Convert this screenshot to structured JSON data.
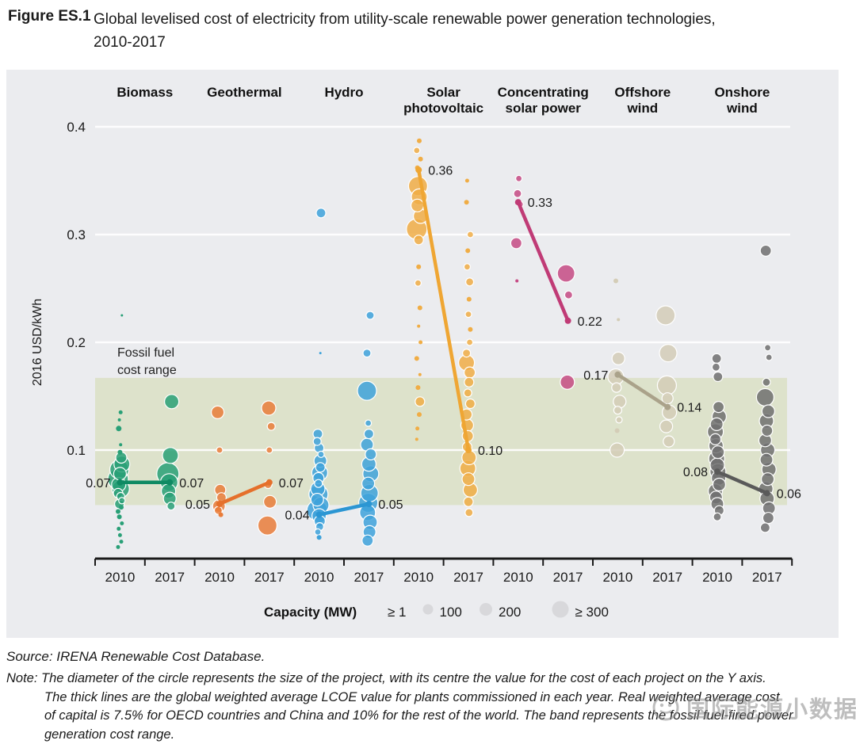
{
  "figure": {
    "label": "Figure ES.1",
    "title_line1": "Global levelised cost of electricity from utility-scale renewable power generation technologies,",
    "title_line2": "2010-2017"
  },
  "source": "Source: IRENA Renewable Cost Database.",
  "note": {
    "lines": [
      "Note: The diameter of the circle represents the size of the project, with its centre the value for the cost of each project on the Y axis.",
      "The thick lines are the global weighted average LCOE value for plants commissioned in each year. Real weighted average cost",
      "of capital is 7.5% for OECD countries and China and 10% for the rest of the world. The band represents the fossil fuel-fired power",
      "generation cost range."
    ]
  },
  "watermark": "国际能源小数据",
  "chart_data": {
    "type": "scatter",
    "title": "Global levelised cost of electricity from utility-scale renewable power generation technologies, 2010-2017",
    "ylabel": "2016 USD/kWh",
    "ylim": [
      0,
      0.43
    ],
    "yticks": [
      0.1,
      0.2,
      0.3,
      0.4
    ],
    "years": [
      "2010",
      "2017"
    ],
    "grid": "horizontal-white",
    "fossil_band": {
      "label_lines": [
        "Fossil fuel",
        "cost range"
      ],
      "range": [
        0.049,
        0.167
      ],
      "color": "#dde2cb"
    },
    "legend": {
      "title": "Capacity (MW)",
      "items": [
        {
          "label": "≥ 1",
          "r": 0
        },
        {
          "label": "100",
          "r": 6.5
        },
        {
          "label": "200",
          "r": 8
        },
        {
          "label": "≥ 300",
          "r": 10.5
        }
      ],
      "circle_color": "#d8d8db",
      "position": "bottom"
    },
    "groups": [
      {
        "name": "Biomass",
        "name_lines": [
          "Biomass"
        ],
        "color": "#29a077",
        "line_color": "#0f8a63",
        "avg": [
          0.07,
          0.07
        ],
        "labels": [
          {
            "text": "0.07",
            "side": "left"
          },
          {
            "text": "0.07",
            "side": "right"
          }
        ],
        "bubbles_2010": [
          [
            0.225,
            1.5
          ],
          [
            0.135,
            2.5
          ],
          [
            0.128,
            2
          ],
          [
            0.12,
            3.5
          ],
          [
            0.105,
            2
          ],
          [
            0.098,
            3
          ],
          [
            0.093,
            7
          ],
          [
            0.087,
            10
          ],
          [
            0.082,
            12
          ],
          [
            0.078,
            8
          ],
          [
            0.073,
            13
          ],
          [
            0.068,
            9
          ],
          [
            0.064,
            11
          ],
          [
            0.06,
            6
          ],
          [
            0.057,
            5
          ],
          [
            0.053,
            4
          ],
          [
            0.05,
            6
          ],
          [
            0.047,
            3
          ],
          [
            0.043,
            3
          ],
          [
            0.038,
            3
          ],
          [
            0.032,
            2.5
          ],
          [
            0.027,
            2.5
          ],
          [
            0.021,
            2.5
          ],
          [
            0.015,
            2.5
          ],
          [
            0.01,
            2.5
          ]
        ],
        "bubbles_2017": [
          [
            0.145,
            9
          ],
          [
            0.095,
            10
          ],
          [
            0.078,
            14
          ],
          [
            0.07,
            11
          ],
          [
            0.062,
            9
          ],
          [
            0.055,
            8
          ],
          [
            0.048,
            5
          ]
        ]
      },
      {
        "name": "Geothermal",
        "name_lines": [
          "Geothermal"
        ],
        "color": "#e97c39",
        "line_color": "#e5702b",
        "avg": [
          0.05,
          0.07
        ],
        "labels": [
          {
            "text": "0.05",
            "side": "left"
          },
          {
            "text": "0.07",
            "side": "right"
          }
        ],
        "bubbles_2010": [
          [
            0.135,
            8
          ],
          [
            0.1,
            4
          ],
          [
            0.063,
            7
          ],
          [
            0.056,
            6
          ],
          [
            0.048,
            8
          ],
          [
            0.044,
            5
          ],
          [
            0.04,
            3
          ]
        ],
        "bubbles_2017": [
          [
            0.139,
            9
          ],
          [
            0.122,
            5
          ],
          [
            0.1,
            4
          ],
          [
            0.068,
            5
          ],
          [
            0.052,
            8
          ],
          [
            0.03,
            12
          ]
        ]
      },
      {
        "name": "Hydro",
        "name_lines": [
          "Hydro"
        ],
        "color": "#3ea2da",
        "line_color": "#2b96d3",
        "avg": [
          0.04,
          0.05
        ],
        "labels": [
          {
            "text": "0.04",
            "side": "left"
          },
          {
            "text": "0.05",
            "side": "right"
          }
        ],
        "bubbles_2010": [
          [
            0.32,
            6
          ],
          [
            0.19,
            1.5
          ],
          [
            0.115,
            6
          ],
          [
            0.108,
            5
          ],
          [
            0.102,
            6
          ],
          [
            0.096,
            4
          ],
          [
            0.09,
            8
          ],
          [
            0.084,
            6
          ],
          [
            0.079,
            10
          ],
          [
            0.074,
            7
          ],
          [
            0.069,
            5
          ],
          [
            0.064,
            9
          ],
          [
            0.059,
            12
          ],
          [
            0.054,
            8
          ],
          [
            0.049,
            10
          ],
          [
            0.044,
            13
          ],
          [
            0.039,
            9
          ],
          [
            0.034,
            7
          ],
          [
            0.029,
            5
          ],
          [
            0.024,
            4
          ],
          [
            0.019,
            3
          ]
        ],
        "bubbles_2017": [
          [
            0.225,
            5
          ],
          [
            0.19,
            5
          ],
          [
            0.155,
            12
          ],
          [
            0.125,
            4
          ],
          [
            0.115,
            6
          ],
          [
            0.105,
            8
          ],
          [
            0.096,
            7
          ],
          [
            0.087,
            9
          ],
          [
            0.078,
            10
          ],
          [
            0.069,
            8
          ],
          [
            0.06,
            11
          ],
          [
            0.051,
            12
          ],
          [
            0.042,
            10
          ],
          [
            0.033,
            9
          ],
          [
            0.024,
            8
          ],
          [
            0.016,
            7
          ]
        ]
      },
      {
        "name": "Solar photovoltaic",
        "name_lines": [
          "Solar",
          "photovoltaic"
        ],
        "color": "#f0ad45",
        "line_color": "#efa633",
        "avg": [
          0.36,
          0.1
        ],
        "labels": [
          {
            "text": "0.36",
            "side": "right"
          },
          {
            "text": "0.10",
            "side": "right"
          }
        ],
        "bubbles_2010": [
          [
            0.387,
            3
          ],
          [
            0.378,
            4
          ],
          [
            0.37,
            3
          ],
          [
            0.362,
            3
          ],
          [
            0.345,
            12
          ],
          [
            0.335,
            10
          ],
          [
            0.327,
            8
          ],
          [
            0.317,
            9
          ],
          [
            0.305,
            13
          ],
          [
            0.295,
            6
          ],
          [
            0.27,
            3
          ],
          [
            0.255,
            4
          ],
          [
            0.232,
            3
          ],
          [
            0.215,
            2
          ],
          [
            0.2,
            2.5
          ],
          [
            0.185,
            3
          ],
          [
            0.17,
            2
          ],
          [
            0.158,
            3
          ],
          [
            0.145,
            6
          ],
          [
            0.133,
            3
          ],
          [
            0.12,
            2.5
          ],
          [
            0.11,
            2
          ]
        ],
        "bubbles_2017": [
          [
            0.35,
            2.5
          ],
          [
            0.33,
            3
          ],
          [
            0.3,
            4
          ],
          [
            0.285,
            3
          ],
          [
            0.27,
            4
          ],
          [
            0.256,
            5
          ],
          [
            0.24,
            3
          ],
          [
            0.226,
            4
          ],
          [
            0.212,
            3
          ],
          [
            0.2,
            4
          ],
          [
            0.19,
            5
          ],
          [
            0.181,
            10
          ],
          [
            0.172,
            7
          ],
          [
            0.163,
            6
          ],
          [
            0.153,
            5
          ],
          [
            0.143,
            6
          ],
          [
            0.133,
            7
          ],
          [
            0.123,
            8
          ],
          [
            0.113,
            7
          ],
          [
            0.103,
            6
          ],
          [
            0.093,
            9
          ],
          [
            0.083,
            10
          ],
          [
            0.073,
            8
          ],
          [
            0.063,
            9
          ],
          [
            0.052,
            6
          ],
          [
            0.042,
            5
          ]
        ]
      },
      {
        "name": "Concentrating solar power",
        "name_lines": [
          "Concentrating",
          "solar power"
        ],
        "color": "#c64b84",
        "line_color": "#c03b76",
        "avg": [
          0.33,
          0.22
        ],
        "labels": [
          {
            "text": "0.33",
            "side": "right"
          },
          {
            "text": "0.22",
            "side": "right"
          }
        ],
        "bubbles_2010": [
          [
            0.352,
            4
          ],
          [
            0.338,
            5
          ],
          [
            0.328,
            4
          ],
          [
            0.292,
            7
          ],
          [
            0.257,
            2
          ]
        ],
        "bubbles_2017": [
          [
            0.264,
            11
          ],
          [
            0.244,
            5
          ],
          [
            0.163,
            9
          ]
        ]
      },
      {
        "name": "Offshore wind",
        "name_lines": [
          "Offshore",
          "wind"
        ],
        "color": "#d4cdb7",
        "line_color": "#aaa28a",
        "avg": [
          0.17,
          0.14
        ],
        "labels": [
          {
            "text": "0.17",
            "side": "left"
          },
          {
            "text": "0.14",
            "side": "right"
          }
        ],
        "bubbles_2010": [
          [
            0.257,
            3
          ],
          [
            0.221,
            2
          ],
          [
            0.185,
            8
          ],
          [
            0.168,
            10
          ],
          [
            0.158,
            6
          ],
          [
            0.145,
            8
          ],
          [
            0.137,
            5
          ],
          [
            0.128,
            4
          ],
          [
            0.118,
            3
          ],
          [
            0.1,
            9
          ]
        ],
        "bubbles_2017": [
          [
            0.225,
            12
          ],
          [
            0.19,
            11
          ],
          [
            0.16,
            12
          ],
          [
            0.148,
            7
          ],
          [
            0.135,
            9
          ],
          [
            0.122,
            8
          ],
          [
            0.108,
            7
          ]
        ]
      },
      {
        "name": "Onshore wind",
        "name_lines": [
          "Onshore",
          "wind"
        ],
        "color": "#707070",
        "line_color": "#5a5a5a",
        "avg": [
          0.08,
          0.06
        ],
        "labels": [
          {
            "text": "0.08",
            "side": "left"
          },
          {
            "text": "0.06",
            "side": "right"
          }
        ],
        "bubbles_2010": [
          [
            0.185,
            6
          ],
          [
            0.177,
            5
          ],
          [
            0.168,
            6
          ],
          [
            0.14,
            7
          ],
          [
            0.131,
            9
          ],
          [
            0.124,
            8
          ],
          [
            0.117,
            10
          ],
          [
            0.11,
            7
          ],
          [
            0.104,
            9
          ],
          [
            0.098,
            8
          ],
          [
            0.092,
            10
          ],
          [
            0.086,
            9
          ],
          [
            0.08,
            10
          ],
          [
            0.074,
            9
          ],
          [
            0.068,
            8
          ],
          [
            0.062,
            9
          ],
          [
            0.056,
            8
          ],
          [
            0.05,
            8
          ],
          [
            0.044,
            6
          ],
          [
            0.038,
            5
          ]
        ],
        "bubbles_2017": [
          [
            0.285,
            7
          ],
          [
            0.195,
            4
          ],
          [
            0.186,
            4
          ],
          [
            0.163,
            5
          ],
          [
            0.149,
            11
          ],
          [
            0.136,
            8
          ],
          [
            0.127,
            9
          ],
          [
            0.118,
            7
          ],
          [
            0.109,
            8
          ],
          [
            0.1,
            9
          ],
          [
            0.091,
            8
          ],
          [
            0.082,
            9
          ],
          [
            0.073,
            8
          ],
          [
            0.064,
            9
          ],
          [
            0.055,
            9
          ],
          [
            0.046,
            8
          ],
          [
            0.037,
            7
          ],
          [
            0.028,
            6
          ]
        ]
      }
    ]
  }
}
